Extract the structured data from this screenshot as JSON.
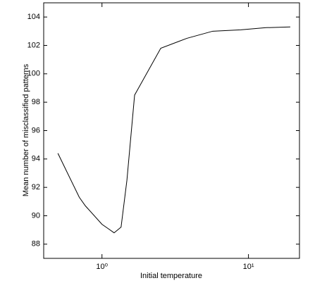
{
  "chart_data": {
    "type": "line",
    "x_label": "Initial temperature",
    "y_label": "Mean number of misclassified patterns",
    "x_log": true,
    "x": [
      0.5,
      0.7,
      0.77,
      1.0,
      1.1,
      1.21,
      1.35,
      1.48,
      1.67,
      2.52,
      3.8,
      5.7,
      8.85,
      13.2,
      19.3
    ],
    "series": [
      {
        "color": "#000000",
        "values": [
          94.4,
          91.3,
          90.7,
          89.4,
          89.1,
          88.8,
          89.2,
          92.5,
          98.5,
          101.8,
          102.5,
          103.0,
          103.1,
          103.25,
          103.3
        ]
      }
    ],
    "xlim": [
      0.4,
      22.3
    ],
    "xticks": [
      {
        "value": 1,
        "label": "10⁰"
      },
      {
        "value": 10,
        "label": "10¹"
      }
    ],
    "ylim": [
      87,
      105
    ],
    "yticks": [
      88,
      90,
      92,
      94,
      96,
      98,
      100,
      102,
      104
    ]
  }
}
